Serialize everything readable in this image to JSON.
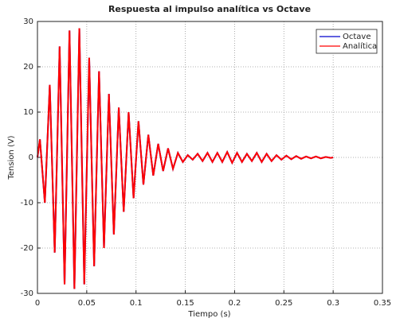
{
  "chart_data": {
    "type": "line",
    "title": "Respuesta al impulso analítica vs Octave",
    "xlabel": "Tiempo (s)",
    "ylabel": "Tension (V)",
    "x": [
      0,
      0.0025,
      0.0075,
      0.0125,
      0.0175,
      0.0225,
      0.0275,
      0.0325,
      0.0375,
      0.0425,
      0.0475,
      0.0525,
      0.0575,
      0.0625,
      0.0675,
      0.0725,
      0.0775,
      0.0825,
      0.0875,
      0.0925,
      0.0975,
      0.1025,
      0.1075,
      0.1125,
      0.1175,
      0.1225,
      0.1275,
      0.1325,
      0.1375,
      0.1425,
      0.1475,
      0.1525,
      0.1575,
      0.1625,
      0.1675,
      0.1725,
      0.1775,
      0.1825,
      0.1875,
      0.1925,
      0.1975,
      0.2025,
      0.2075,
      0.2125,
      0.2175,
      0.2225,
      0.2275,
      0.2325,
      0.2375,
      0.2425,
      0.2475,
      0.2525,
      0.2575,
      0.2625,
      0.2675,
      0.2725,
      0.2775,
      0.2825,
      0.2875,
      0.2925,
      0.2975,
      0.3
    ],
    "series": [
      {
        "name": "Octave",
        "color": "#0000cc",
        "values": [
          0,
          4,
          -10,
          16,
          -21,
          24.5,
          -28,
          28,
          -29,
          28.5,
          -28,
          22,
          -24,
          19,
          -20,
          14,
          -17,
          11,
          -12,
          10,
          -9,
          8,
          -6,
          5,
          -4,
          3,
          -3,
          2,
          -2.5,
          1,
          -1,
          0.5,
          -0.5,
          0.8,
          -0.8,
          1,
          -1,
          1,
          -1,
          1.2,
          -1.2,
          1,
          -1,
          0.8,
          -0.8,
          1,
          -1,
          0.8,
          -0.8,
          0.5,
          -0.5,
          0.4,
          -0.4,
          0.3,
          -0.3,
          0.2,
          -0.2,
          0.2,
          -0.2,
          0.1,
          -0.1,
          0
        ]
      },
      {
        "name": "Analítica",
        "color": "#ff0000",
        "values": [
          0,
          4,
          -10,
          16,
          -21,
          24.5,
          -28,
          28,
          -29,
          28.5,
          -28,
          22,
          -24,
          19,
          -20,
          14,
          -17,
          11,
          -12,
          10,
          -9,
          8,
          -6,
          5,
          -4,
          3,
          -3,
          2,
          -2.5,
          1,
          -1,
          0.5,
          -0.5,
          0.8,
          -0.8,
          1,
          -1,
          1,
          -1,
          1.2,
          -1.2,
          1,
          -1,
          0.8,
          -0.8,
          1,
          -1,
          0.8,
          -0.8,
          0.5,
          -0.5,
          0.4,
          -0.4,
          0.3,
          -0.3,
          0.2,
          -0.2,
          0.2,
          -0.2,
          0.1,
          -0.1,
          0
        ]
      }
    ],
    "xlim": [
      0,
      0.35
    ],
    "xticks": [
      0,
      0.05,
      0.1,
      0.15,
      0.2,
      0.25,
      0.3,
      0.35
    ],
    "ylim": [
      -30,
      30
    ],
    "yticks": [
      -30,
      -20,
      -10,
      0,
      10,
      20,
      30
    ],
    "grid": true,
    "legend": "upper right"
  }
}
